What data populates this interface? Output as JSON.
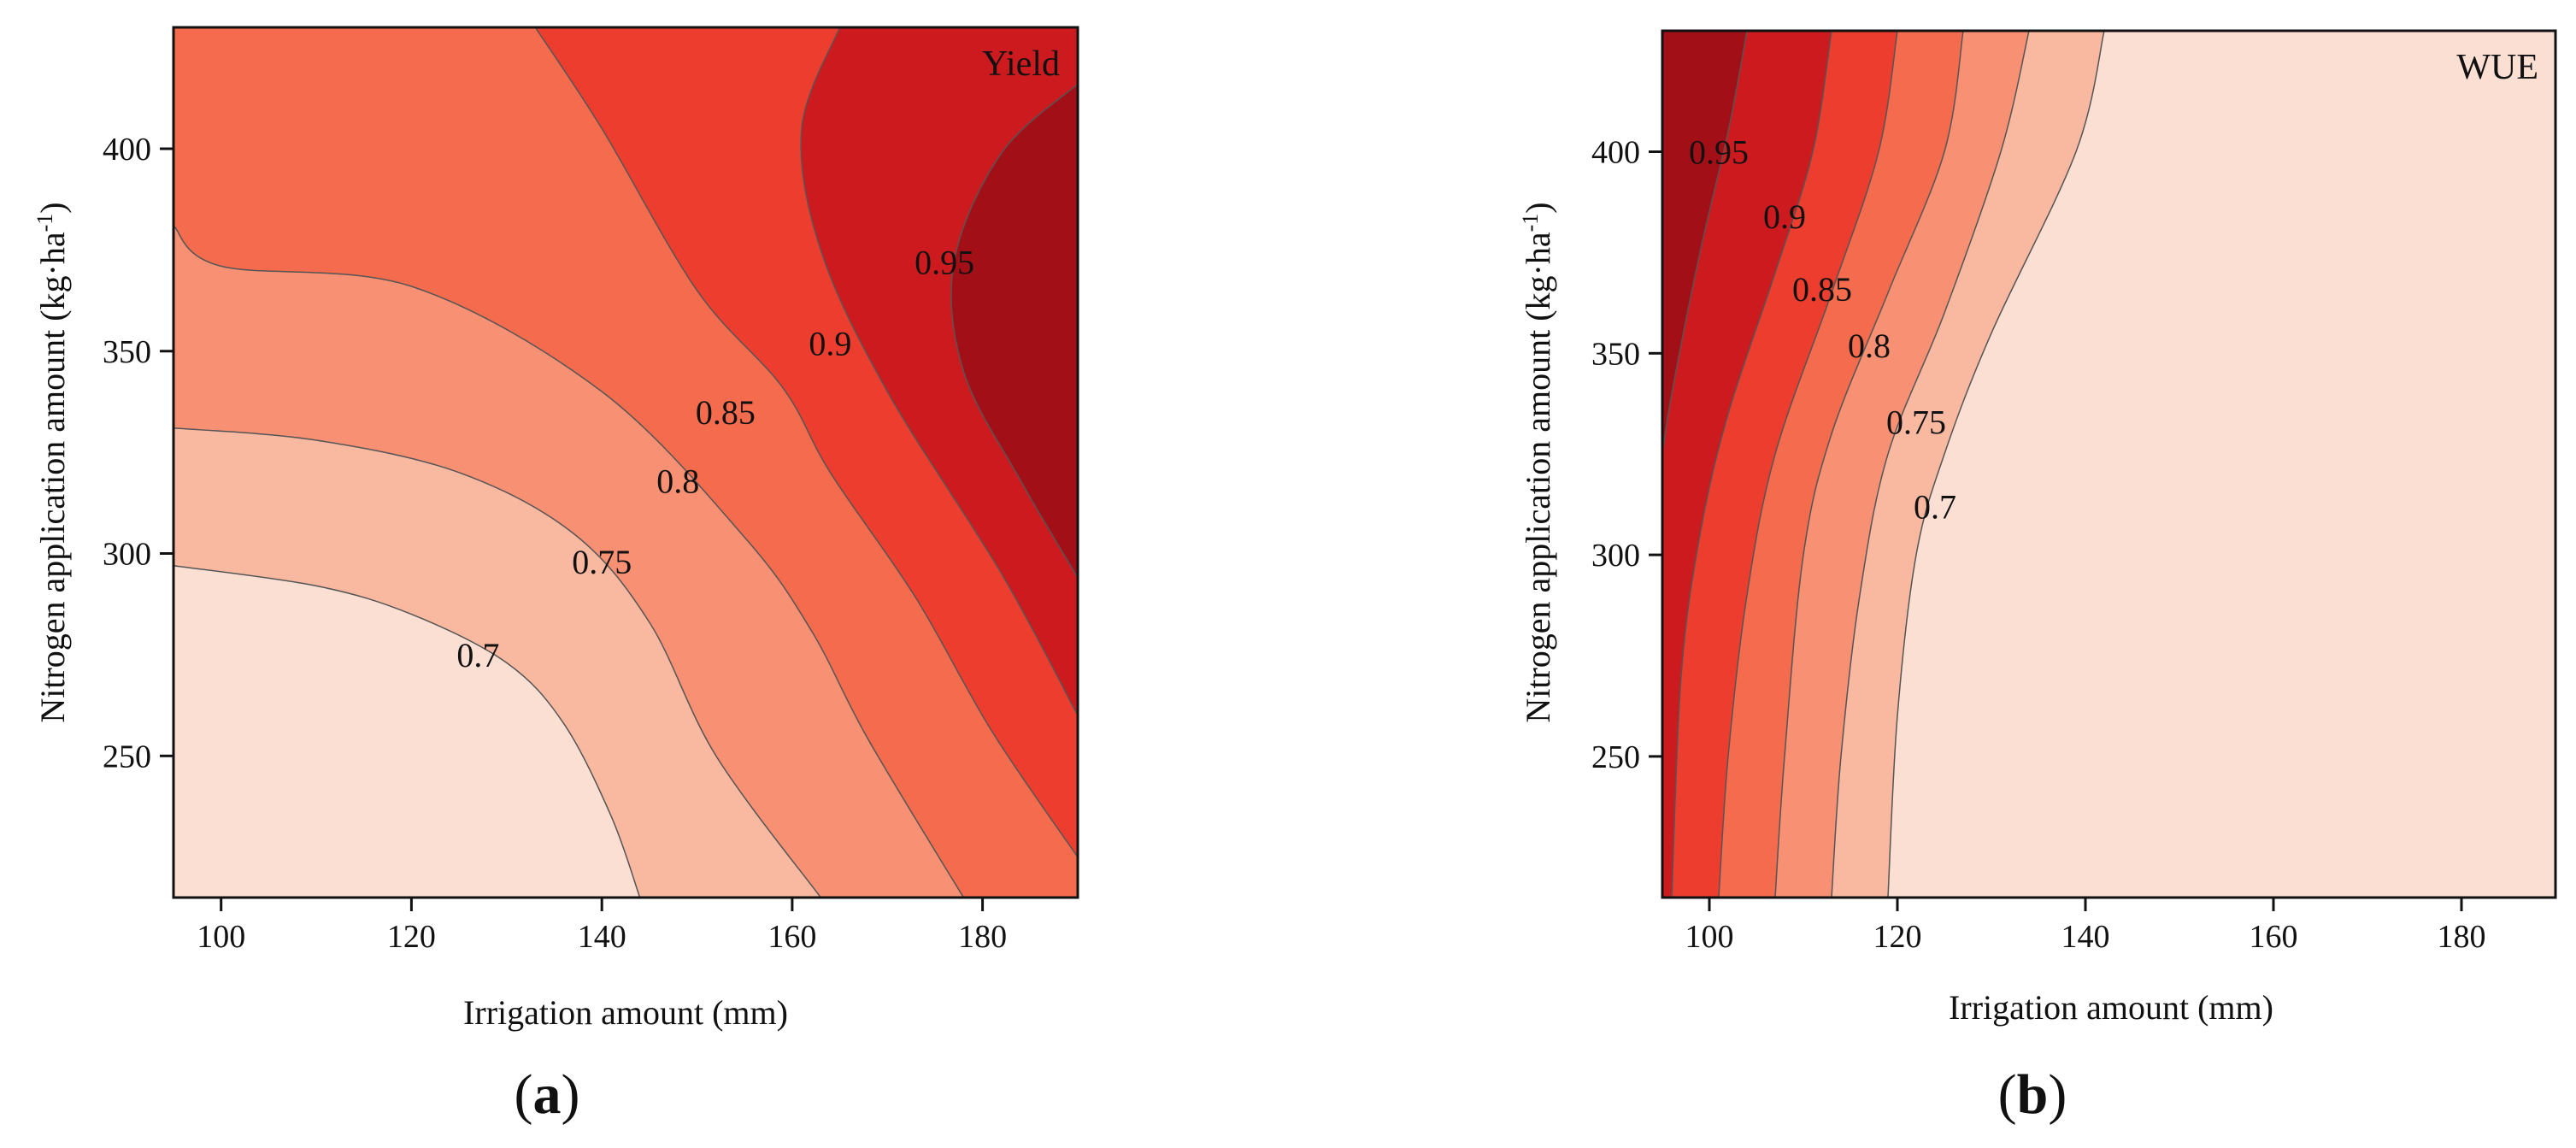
{
  "chart_data": [
    {
      "type": "contour",
      "panel_label": "a",
      "title": "Yield",
      "xlabel": "Irrigation amount (mm)",
      "ylabel": "Nitrogen application amount (kg·ha",
      "ylabel_sup": "-1",
      "ylabel_close": ")",
      "xlim": [
        95,
        190
      ],
      "ylim": [
        215,
        430
      ],
      "xticks": [
        100,
        120,
        140,
        160,
        180
      ],
      "yticks": [
        250,
        300,
        350,
        400
      ],
      "levels": [
        0.7,
        0.75,
        0.8,
        0.85,
        0.9,
        0.95
      ],
      "level_labels": [
        "0.7",
        "0.75",
        "0.8",
        "0.85",
        "0.9",
        "0.95"
      ],
      "level_label_positions": [
        [
          127,
          275
        ],
        [
          140,
          298
        ],
        [
          148,
          318
        ],
        [
          153,
          335
        ],
        [
          164,
          352
        ],
        [
          176,
          372
        ]
      ],
      "contour_lines": [
        [
          [
            95,
            297
          ],
          [
            110,
            292
          ],
          [
            120,
            285
          ],
          [
            130,
            273
          ],
          [
            136,
            258
          ],
          [
            141,
            235
          ],
          [
            144,
            215
          ]
        ],
        [
          [
            95,
            331
          ],
          [
            110,
            328
          ],
          [
            125,
            320
          ],
          [
            137,
            305
          ],
          [
            145,
            283
          ],
          [
            152,
            250
          ],
          [
            163,
            215
          ]
        ],
        [
          [
            95,
            381
          ],
          [
            100,
            371
          ],
          [
            120,
            366
          ],
          [
            140,
            340
          ],
          [
            155,
            304
          ],
          [
            162,
            281
          ],
          [
            168,
            254
          ],
          [
            178,
            215
          ]
        ],
        [
          [
            133,
            430
          ],
          [
            140,
            405
          ],
          [
            150,
            365
          ],
          [
            159,
            341
          ],
          [
            164,
            320
          ],
          [
            173,
            289
          ],
          [
            181,
            256
          ],
          [
            190,
            225
          ]
        ],
        [
          [
            165,
            430
          ],
          [
            161,
            405
          ],
          [
            163,
            375
          ],
          [
            170,
            340
          ],
          [
            182,
            295
          ],
          [
            190,
            260
          ]
        ],
        [
          [
            190,
            416
          ],
          [
            182,
            399
          ],
          [
            177,
            372
          ],
          [
            178,
            345
          ],
          [
            184,
            318
          ],
          [
            190,
            294
          ]
        ]
      ],
      "band_colors": [
        "#fbdfd3",
        "#f9b8a0",
        "#f89074",
        "#f46c4d",
        "#ec3d2f",
        "#cc1a1f",
        "#a30f17"
      ]
    },
    {
      "type": "contour",
      "panel_label": "b",
      "title": "WUE",
      "xlabel": "Irrigation amount (mm)",
      "ylabel": "Nitrogen application amount (kg·ha",
      "ylabel_sup": "-1",
      "ylabel_close": ")",
      "xlim": [
        95,
        190
      ],
      "ylim": [
        215,
        430
      ],
      "xticks": [
        100,
        120,
        140,
        160,
        180
      ],
      "yticks": [
        250,
        300,
        350,
        400
      ],
      "levels": [
        0.7,
        0.75,
        0.8,
        0.85,
        0.9,
        0.95
      ],
      "level_labels": [
        "0.7",
        "0.75",
        "0.8",
        "0.85",
        "0.9",
        "0.95"
      ],
      "level_label_positions": [
        [
          124,
          312
        ],
        [
          122,
          333
        ],
        [
          117,
          352
        ],
        [
          112,
          366
        ],
        [
          108,
          384
        ],
        [
          101,
          400
        ]
      ],
      "contour_lines": [
        [
          [
            142,
            430
          ],
          [
            139,
            400
          ],
          [
            130,
            355
          ],
          [
            125,
            325
          ],
          [
            122,
            300
          ],
          [
            120,
            260
          ],
          [
            119,
            215
          ]
        ],
        [
          [
            134,
            430
          ],
          [
            131,
            400
          ],
          [
            125,
            360
          ],
          [
            119,
            325
          ],
          [
            116,
            290
          ],
          [
            114,
            250
          ],
          [
            113,
            215
          ]
        ],
        [
          [
            127,
            430
          ],
          [
            125,
            400
          ],
          [
            119,
            365
          ],
          [
            113,
            330
          ],
          [
            110,
            300
          ],
          [
            108,
            250
          ],
          [
            107,
            215
          ]
        ],
        [
          [
            120,
            430
          ],
          [
            118,
            400
          ],
          [
            113,
            365
          ],
          [
            107,
            325
          ],
          [
            104,
            290
          ],
          [
            102,
            250
          ],
          [
            101,
            215
          ]
        ],
        [
          [
            113,
            430
          ],
          [
            111,
            400
          ],
          [
            107,
            370
          ],
          [
            102,
            335
          ],
          [
            99,
            305
          ],
          [
            97,
            270
          ],
          [
            96,
            215
          ]
        ],
        [
          [
            104,
            430
          ],
          [
            102,
            405
          ],
          [
            99,
            375
          ],
          [
            96,
            340
          ],
          [
            95,
            325
          ]
        ]
      ],
      "band_colors": [
        "#fbdfd3",
        "#f9b8a0",
        "#f89074",
        "#f46c4d",
        "#ec3d2f",
        "#cc1a1f",
        "#a30f17"
      ]
    }
  ]
}
